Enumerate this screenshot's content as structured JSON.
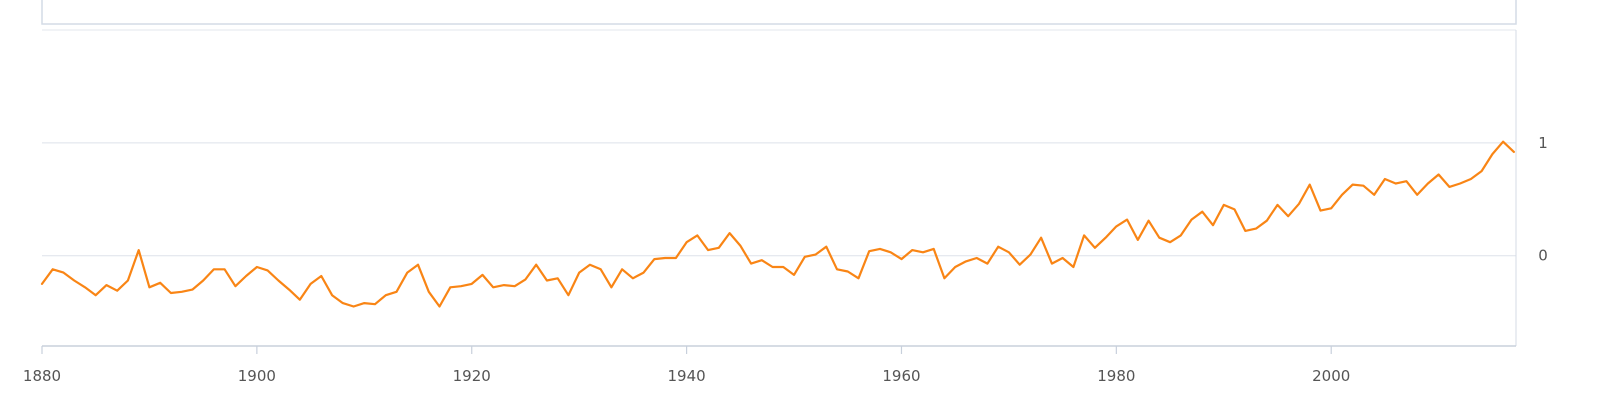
{
  "chart_data": {
    "type": "line",
    "title": "",
    "xlabel": "",
    "ylabel": "",
    "xlim": [
      1880,
      2017.2
    ],
    "ylim": [
      -0.8,
      2.0
    ],
    "x_ticks": [
      1880,
      1900,
      1920,
      1940,
      1960,
      1980,
      2000
    ],
    "y_ticks": [
      0,
      1
    ],
    "grid": "horizontal",
    "legend": "none",
    "series": [
      {
        "color": "#f98515",
        "x": [
          1880,
          1881,
          1882,
          1883,
          1884,
          1885,
          1886,
          1887,
          1888,
          1889,
          1890,
          1891,
          1892,
          1893,
          1894,
          1895,
          1896,
          1897,
          1898,
          1899,
          1900,
          1901,
          1902,
          1903,
          1904,
          1905,
          1906,
          1907,
          1908,
          1909,
          1910,
          1911,
          1912,
          1913,
          1914,
          1915,
          1916,
          1917,
          1918,
          1919,
          1920,
          1921,
          1922,
          1923,
          1924,
          1925,
          1926,
          1927,
          1928,
          1929,
          1930,
          1931,
          1932,
          1933,
          1934,
          1935,
          1936,
          1937,
          1938,
          1939,
          1940,
          1941,
          1942,
          1943,
          1944,
          1945,
          1946,
          1947,
          1948,
          1949,
          1950,
          1951,
          1952,
          1953,
          1954,
          1955,
          1956,
          1957,
          1958,
          1959,
          1960,
          1961,
          1962,
          1963,
          1964,
          1965,
          1966,
          1967,
          1968,
          1969,
          1970,
          1971,
          1972,
          1973,
          1974,
          1975,
          1976,
          1977,
          1978,
          1979,
          1980,
          1981,
          1982,
          1983,
          1984,
          1985,
          1986,
          1987,
          1988,
          1989,
          1990,
          1991,
          1992,
          1993,
          1994,
          1995,
          1996,
          1997,
          1998,
          1999,
          2000,
          2001,
          2002,
          2003,
          2004,
          2005,
          2006,
          2007,
          2008,
          2009,
          2010,
          2011,
          2012,
          2013,
          2014,
          2015,
          2016,
          2017
        ],
        "y": [
          -0.25,
          -0.12,
          -0.15,
          -0.22,
          -0.28,
          -0.35,
          -0.26,
          -0.31,
          -0.22,
          0.05,
          -0.28,
          -0.24,
          -0.33,
          -0.32,
          -0.3,
          -0.22,
          -0.12,
          -0.12,
          -0.27,
          -0.18,
          -0.1,
          -0.13,
          -0.22,
          -0.3,
          -0.39,
          -0.25,
          -0.18,
          -0.35,
          -0.42,
          -0.45,
          -0.42,
          -0.43,
          -0.35,
          -0.32,
          -0.15,
          -0.08,
          -0.32,
          -0.45,
          -0.28,
          -0.27,
          -0.25,
          -0.17,
          -0.28,
          -0.26,
          -0.27,
          -0.21,
          -0.08,
          -0.22,
          -0.2,
          -0.35,
          -0.15,
          -0.08,
          -0.12,
          -0.28,
          -0.12,
          -0.2,
          -0.15,
          -0.03,
          -0.02,
          -0.02,
          0.12,
          0.18,
          0.05,
          0.07,
          0.2,
          0.09,
          -0.07,
          -0.04,
          -0.1,
          -0.1,
          -0.17,
          -0.01,
          0.01,
          0.08,
          -0.12,
          -0.14,
          -0.2,
          0.04,
          0.06,
          0.03,
          -0.03,
          0.05,
          0.03,
          0.06,
          -0.2,
          -0.1,
          -0.05,
          -0.02,
          -0.07,
          0.08,
          0.03,
          -0.08,
          0.01,
          0.16,
          -0.07,
          -0.02,
          -0.1,
          0.18,
          0.07,
          0.16,
          0.26,
          0.32,
          0.14,
          0.31,
          0.16,
          0.12,
          0.18,
          0.32,
          0.39,
          0.27,
          0.45,
          0.41,
          0.22,
          0.24,
          0.31,
          0.45,
          0.35,
          0.46,
          0.63,
          0.4,
          0.42,
          0.54,
          0.63,
          0.62,
          0.54,
          0.68,
          0.64,
          0.66,
          0.54,
          0.64,
          0.72,
          0.61,
          0.64,
          0.68,
          0.75,
          0.9,
          1.01,
          0.92
        ]
      }
    ]
  }
}
